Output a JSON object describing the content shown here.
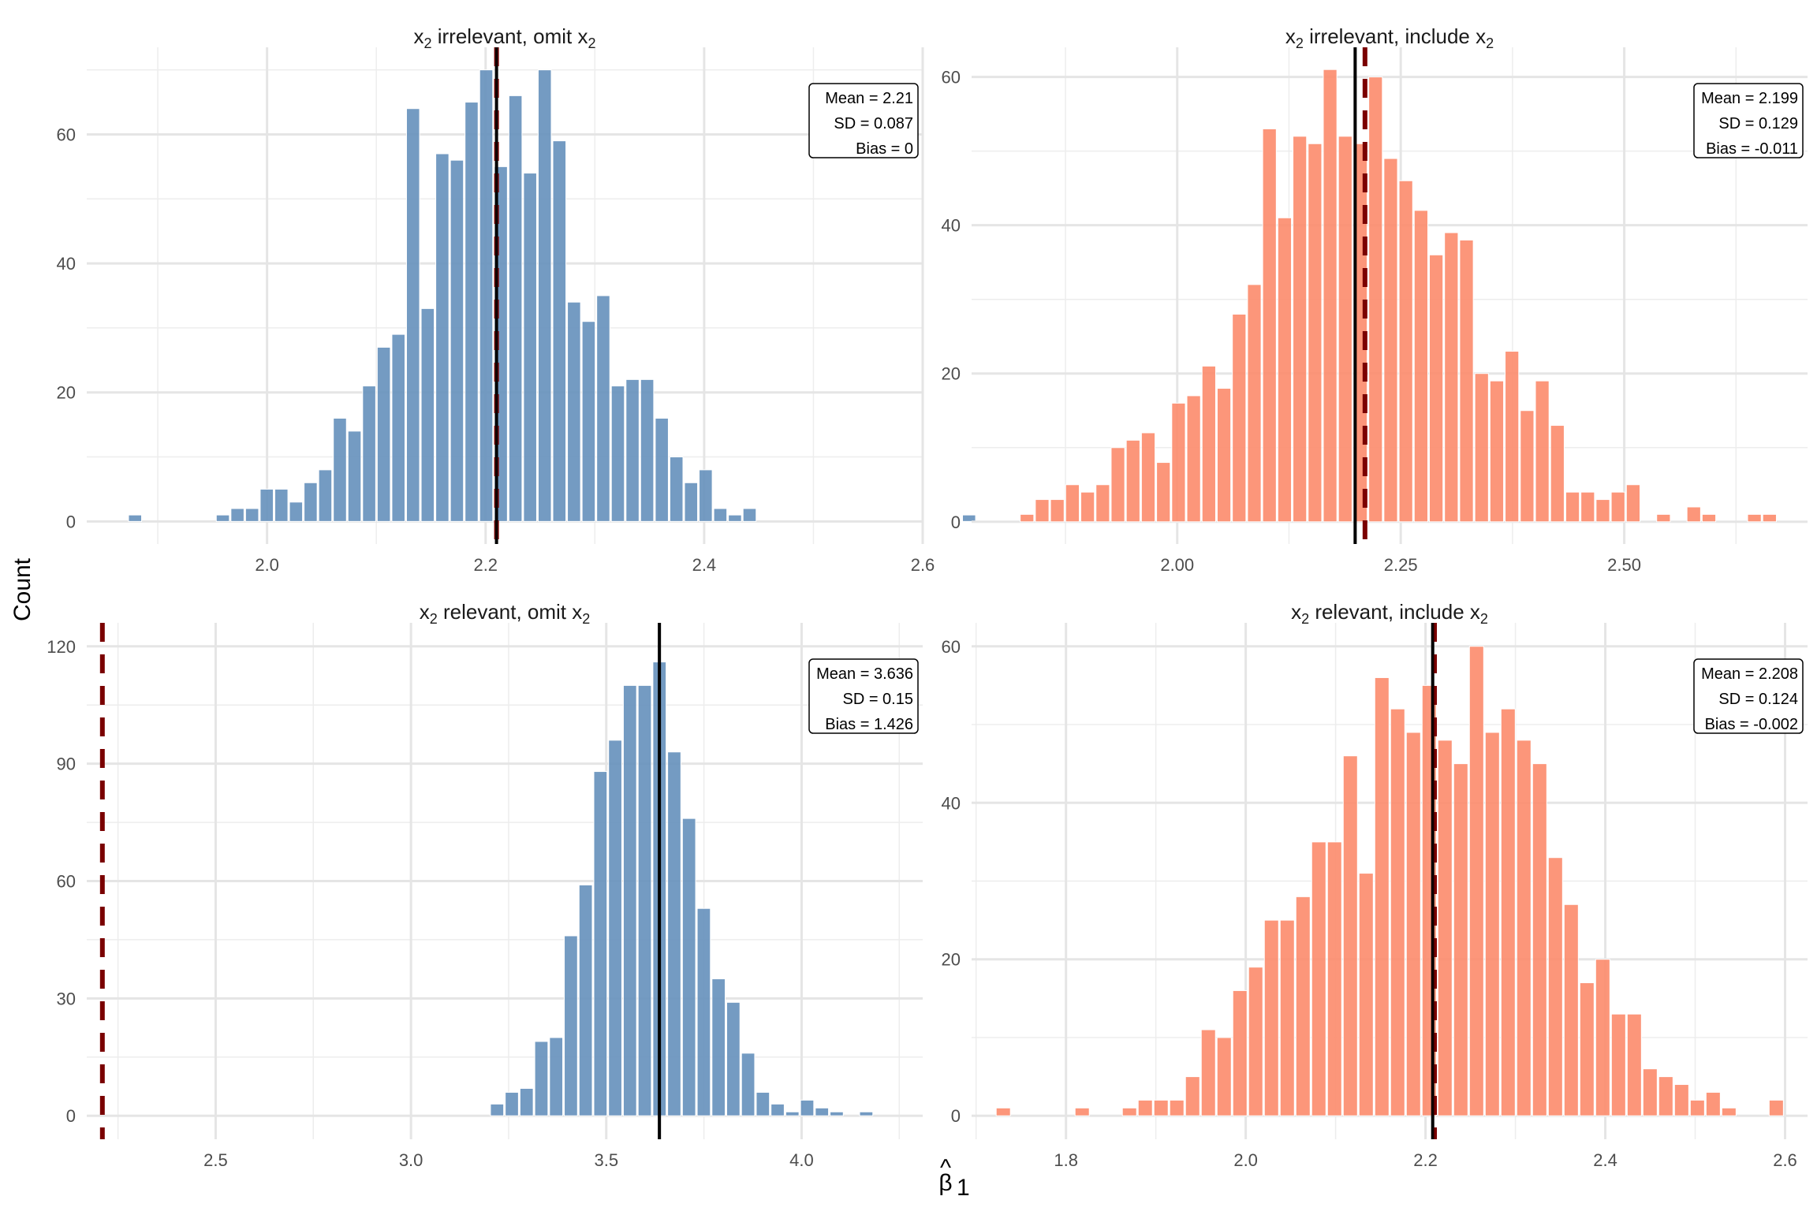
{
  "figure": {
    "y_axis_title": "Count",
    "x_axis_title_symbol": "β",
    "x_axis_title_hat": "^",
    "x_axis_title_sub": "1"
  },
  "colors": {
    "omit_fill": "#6892bd",
    "include_fill": "#fc8d6f",
    "mean_line": "#000000",
    "true_line": "#7a0000"
  },
  "chart_data": [
    {
      "type": "bar",
      "panel": "top-left",
      "title_parts": [
        "x",
        "2",
        " irrelevant, omit x",
        "2"
      ],
      "title": "x2 irrelevant, omit x2",
      "fill": "omit",
      "xlim": [
        1.835,
        2.6
      ],
      "ylim": [
        -3.5,
        73.5
      ],
      "xticks": [
        2.0,
        2.2,
        2.4,
        2.6
      ],
      "xtick_labels": [
        "2.0",
        "2.2",
        "2.4",
        "2.6"
      ],
      "xminor": [
        1.9,
        2.1,
        2.3,
        2.5
      ],
      "yticks": [
        0,
        20,
        40,
        60
      ],
      "yminor": [
        10,
        30,
        50,
        70
      ],
      "bin_start": 1.8725,
      "binwidth": 0.01339,
      "counts": [
        1,
        0,
        0,
        0,
        0,
        0,
        1,
        2,
        2,
        5,
        5,
        3,
        6,
        8,
        16,
        14,
        21,
        27,
        29,
        64,
        33,
        57,
        56,
        65,
        70,
        55,
        66,
        54,
        70,
        59,
        34,
        31,
        35,
        21,
        22,
        22,
        16,
        10,
        6,
        8,
        2,
        1,
        2,
        0,
        0,
        0,
        0,
        0,
        0,
        0,
        0,
        0,
        0,
        0,
        0,
        0,
        0,
        1
      ],
      "mean_line": 2.21,
      "true_value": 2.21,
      "stats": [
        "Mean = 2.21",
        "SD = 0.087",
        "Bias = 0"
      ]
    },
    {
      "type": "bar",
      "panel": "top-right",
      "title_parts": [
        "x",
        "2",
        " irrelevant, include x",
        "2"
      ],
      "title": "x2 irrelevant, include x2",
      "fill": "include",
      "xlim": [
        1.77,
        2.705
      ],
      "ylim": [
        -3,
        64
      ],
      "xticks": [
        2.0,
        2.25,
        2.5
      ],
      "xtick_labels": [
        "2.00",
        "2.25",
        "2.50"
      ],
      "xminor": [
        1.875,
        2.125,
        2.375,
        2.625
      ],
      "yticks": [
        0,
        20,
        40,
        60
      ],
      "yminor": [
        10,
        30,
        50
      ],
      "bin_start": 1.8235,
      "binwidth": 0.01695,
      "counts": [
        1,
        3,
        3,
        5,
        4,
        5,
        10,
        11,
        12,
        8,
        16,
        17,
        21,
        18,
        28,
        32,
        53,
        41,
        52,
        51,
        61,
        52,
        51,
        60,
        49,
        46,
        42,
        36,
        39,
        38,
        20,
        19,
        23,
        15,
        19,
        13,
        4,
        4,
        3,
        4,
        5,
        0,
        1,
        0,
        2,
        1,
        0,
        0,
        1,
        1
      ],
      "mean_line": 2.199,
      "true_value": 2.21,
      "stats": [
        "Mean = 2.199",
        "SD = 0.129",
        "Bias = -0.011"
      ]
    },
    {
      "type": "bar",
      "panel": "bottom-left",
      "title_parts": [
        "x",
        "2",
        " relevant, omit x",
        "2"
      ],
      "title": "x2 relevant, omit x2",
      "fill": "omit",
      "xlim": [
        2.17,
        4.31
      ],
      "ylim": [
        -6,
        126
      ],
      "xticks": [
        2.5,
        3.0,
        3.5,
        4.0
      ],
      "xtick_labels": [
        "2.5",
        "3.0",
        "3.5",
        "4.0"
      ],
      "xminor": [
        2.25,
        2.75,
        3.25,
        3.75,
        4.25
      ],
      "yticks": [
        0,
        30,
        60,
        90,
        120
      ],
      "yminor": [
        15,
        45,
        75,
        105
      ],
      "bin_start": 3.2015,
      "binwidth": 0.0378,
      "counts": [
        3,
        6,
        7,
        19,
        20,
        46,
        59,
        88,
        96,
        110,
        110,
        116,
        93,
        76,
        53,
        35,
        29,
        16,
        6,
        3,
        1,
        4,
        2,
        1,
        0,
        1
      ],
      "mean_line": 3.636,
      "true_value": 2.21,
      "stats": [
        "Mean = 3.636",
        "SD = 0.15",
        "Bias = 1.426"
      ]
    },
    {
      "type": "bar",
      "panel": "bottom-right",
      "title_parts": [
        "x",
        "2",
        " relevant, include x",
        "2"
      ],
      "title": "x2 relevant, include x2",
      "fill": "include",
      "xlim": [
        1.695,
        2.625
      ],
      "ylim": [
        -3,
        63
      ],
      "xticks": [
        1.8,
        2.0,
        2.2,
        2.4,
        2.6
      ],
      "xtick_labels": [
        "1.8",
        "2.0",
        "2.2",
        "2.4",
        "2.6"
      ],
      "xminor": [
        1.7,
        1.9,
        2.1,
        2.3,
        2.5
      ],
      "yticks": [
        0,
        20,
        40,
        60
      ],
      "yminor": [
        10,
        30,
        50
      ],
      "bin_start": 1.7215,
      "binwidth": 0.01755,
      "counts": [
        1,
        0,
        0,
        0,
        0,
        1,
        0,
        0,
        1,
        2,
        2,
        2,
        5,
        11,
        10,
        16,
        19,
        25,
        25,
        28,
        35,
        35,
        46,
        31,
        56,
        52,
        49,
        55,
        48,
        45,
        60,
        49,
        52,
        48,
        45,
        33,
        27,
        17,
        20,
        13,
        13,
        6,
        5,
        4,
        2,
        3,
        1,
        0,
        0,
        2
      ],
      "mean_line": 2.208,
      "true_value": 2.21,
      "stats": [
        "Mean = 2.208",
        "SD = 0.124",
        "Bias = -0.002"
      ]
    }
  ]
}
